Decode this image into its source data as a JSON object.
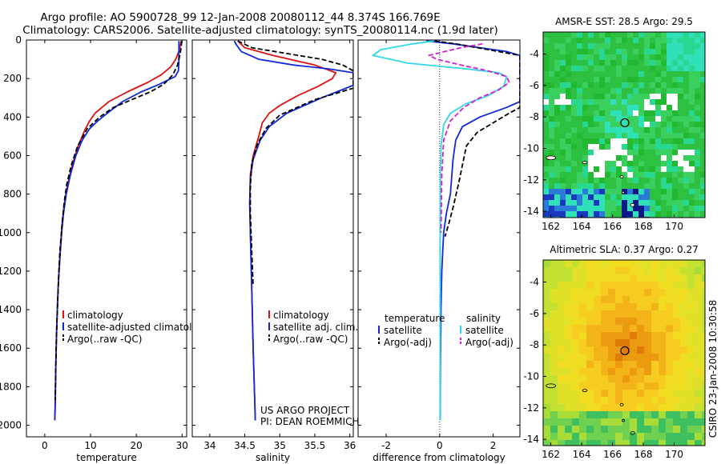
{
  "header": {
    "title_line1": "Argo profile: AO 5900728_99 12-Jan-2008 20080112_44 8.374S 166.769E",
    "title_line2": "Climatology: CARS2006. Satellite-adjusted climatology: synTS_20080114.nc (1.9d later)"
  },
  "side_label": "CSIRO 23-Jan-2008 10:30:58",
  "colors": {
    "climatology": "#e01010",
    "satellite": "#1028d8",
    "argo": "#000000",
    "satellite_salinity": "#30d8e8",
    "argo_salinity": "#d020d0"
  },
  "chart_data": [
    {
      "type": "line",
      "xlabel": "temperature",
      "ylabel": "",
      "xlim": [
        -4,
        31
      ],
      "ylim": [
        2060,
        0
      ],
      "xticks": [
        0,
        10,
        20,
        30
      ],
      "yticks": [
        0,
        200,
        400,
        600,
        800,
        1000,
        1200,
        1400,
        1600,
        1800,
        2000
      ],
      "legend": {
        "position": "lower-right",
        "entries": [
          "climatology",
          "satellite-adjusted climatolog",
          "Argo(..raw -QC)"
        ]
      },
      "series": [
        {
          "name": "climatology",
          "color": "climatology",
          "dash": false,
          "x": [
            29.8,
            29.6,
            29.3,
            28.6,
            27.5,
            25.5,
            22.5,
            18,
            14,
            11,
            9.8,
            8.7,
            7.3,
            6,
            5,
            4.3,
            3.8,
            3.5,
            3.1,
            2.8,
            2.6,
            2.45,
            2.35,
            2.3,
            2.2
          ],
          "y": [
            5,
            30,
            60,
            100,
            140,
            180,
            220,
            270,
            320,
            380,
            420,
            470,
            550,
            650,
            750,
            850,
            950,
            1050,
            1200,
            1350,
            1500,
            1650,
            1800,
            1900,
            1975
          ]
        },
        {
          "name": "satellite-adjusted climatolog",
          "color": "satellite",
          "dash": false,
          "x": [
            29.3,
            29.3,
            29.3,
            29.2,
            28.5,
            25,
            21,
            17,
            14.2,
            11.6,
            9.8,
            8.2,
            6.8,
            5.6,
            4.7,
            4.1,
            3.7,
            3.4,
            3,
            2.75,
            2.55,
            2.4,
            2.3,
            2.25,
            2.2
          ],
          "y": [
            5,
            60,
            120,
            160,
            190,
            230,
            270,
            320,
            370,
            420,
            460,
            520,
            600,
            700,
            800,
            900,
            1000,
            1100,
            1250,
            1400,
            1550,
            1700,
            1850,
            1920,
            1975
          ]
        },
        {
          "name": "Argo(..raw -QC)",
          "color": "argo",
          "dash": true,
          "x": [
            29.9,
            29.8,
            29.5,
            29,
            28,
            26,
            23,
            19,
            15,
            12,
            9.3,
            7.2,
            5.8,
            4.8,
            4.2,
            3.8,
            3.3,
            3,
            2.75,
            2.55,
            2.4,
            2.3
          ],
          "y": [
            5,
            40,
            80,
            130,
            180,
            230,
            270,
            310,
            350,
            400,
            460,
            550,
            650,
            750,
            850,
            950,
            1100,
            1250,
            1400,
            1550,
            1700,
            1870
          ]
        }
      ]
    },
    {
      "type": "line",
      "xlabel": "salinity",
      "ylabel": "",
      "xlim": [
        33.75,
        36.05
      ],
      "ylim": [
        2060,
        0
      ],
      "xticks": [
        34,
        34.5,
        35,
        35.5,
        36
      ],
      "yticks": [
        0,
        200,
        400,
        600,
        800,
        1000,
        1200,
        1400,
        1600,
        1800,
        2000
      ],
      "legend": {
        "position": "lower-right",
        "entries": [
          "climatology",
          "satellite adj. clim.",
          "Argo(..raw -QC)"
        ]
      },
      "annotation": [
        "US ARGO PROJECT",
        "PI: DEAN ROEMMICH"
      ],
      "series": [
        {
          "name": "climatology",
          "color": "climatology",
          "dash": false,
          "x": [
            34.4,
            34.5,
            34.9,
            35.5,
            35.8,
            35.75,
            35.55,
            35.25,
            35.0,
            34.85,
            34.75,
            34.7,
            34.62,
            34.58,
            34.57,
            34.58,
            34.6,
            34.62,
            34.65
          ],
          "y": [
            5,
            40,
            80,
            130,
            170,
            200,
            240,
            290,
            340,
            380,
            430,
            500,
            600,
            700,
            850,
            1000,
            1300,
            1600,
            1975
          ]
        },
        {
          "name": "satellite adj. clim.",
          "color": "satellite",
          "dash": false,
          "x": [
            34.35,
            34.38,
            34.45,
            34.7,
            35.2,
            35.7,
            36.05,
            36.05,
            35.6,
            35.1,
            34.85,
            34.72,
            34.62,
            34.58,
            34.57,
            34.58,
            34.6,
            34.62,
            34.65
          ],
          "y": [
            5,
            25,
            60,
            100,
            130,
            150,
            170,
            235,
            300,
            380,
            450,
            520,
            620,
            720,
            850,
            1000,
            1300,
            1600,
            1975
          ]
        },
        {
          "name": "Argo(..raw -QC)",
          "color": "argo",
          "dash": true,
          "x": [
            34.4,
            34.6,
            35.1,
            35.6,
            35.9,
            36.05,
            36.05,
            35.5,
            35.0,
            34.8,
            34.68,
            34.6,
            34.58,
            34.58,
            34.6,
            34.62
          ],
          "y": [
            5,
            40,
            70,
            100,
            130,
            160,
            250,
            310,
            390,
            460,
            540,
            640,
            760,
            900,
            1100,
            1280
          ]
        }
      ]
    },
    {
      "type": "line",
      "xlabel": "difference from climatology",
      "ylabel": "",
      "xlim": [
        -3.05,
        3
      ],
      "ylim": [
        2060,
        0
      ],
      "xticks": [
        -2,
        0,
        2
      ],
      "yticks": [
        0,
        200,
        400,
        600,
        800,
        1000,
        1200,
        1400,
        1600,
        1800,
        2000
      ],
      "zero_line": true,
      "legend": {
        "position": "lower-center",
        "columns": [
          [
            "temperature",
            "satellite",
            "Argo(-adj)"
          ],
          [
            "salinity",
            "satellite",
            "Argo(-adj)"
          ]
        ]
      },
      "series": [
        {
          "name": "satellite",
          "group": "temperature",
          "color": "satellite",
          "dash": false,
          "x": [
            -0.5,
            0.5,
            1.5,
            2.5,
            3.0,
            3.0,
            2.5,
            1.5,
            0.85,
            0.6,
            0.5,
            0.4,
            0.25,
            0.15,
            0.08,
            0.05,
            0.03,
            0.02
          ],
          "y": [
            5,
            20,
            40,
            60,
            80,
            320,
            350,
            400,
            450,
            520,
            620,
            800,
            900,
            1000,
            1200,
            1400,
            1700,
            1975
          ]
        },
        {
          "name": "Argo(-adj)",
          "group": "temperature",
          "color": "argo",
          "dash": true,
          "x": [
            -0.2,
            0.6,
            1.8,
            3.0,
            3.0,
            2.6,
            2.0,
            1.4,
            1.0,
            0.85,
            0.7,
            0.5,
            0.35,
            0.2
          ],
          "y": [
            5,
            20,
            50,
            80,
            350,
            380,
            430,
            480,
            550,
            650,
            750,
            870,
            950,
            1020
          ]
        },
        {
          "name": "satellite",
          "group": "salinity",
          "color": "satellite_salinity",
          "dash": false,
          "x": [
            -0.2,
            -1.0,
            -2.2,
            -2.5,
            -1.2,
            1.0,
            2.2,
            2.5,
            2.4,
            1.8,
            1.0,
            0.4,
            0.15,
            0.05,
            0.03,
            0.02,
            0.02,
            0.02
          ],
          "y": [
            5,
            20,
            50,
            80,
            120,
            150,
            170,
            190,
            240,
            290,
            330,
            380,
            440,
            550,
            700,
            1000,
            1500,
            1975
          ]
        },
        {
          "name": "Argo(-adj)",
          "group": "salinity",
          "color": "argo_salinity",
          "dash": true,
          "x": [
            1.6,
            0.8,
            0.2,
            -0.4,
            -0.1,
            0.8,
            1.8,
            2.5,
            2.6,
            2.2,
            1.5,
            0.9,
            0.4,
            0.15,
            0.08,
            0.05
          ],
          "y": [
            20,
            40,
            60,
            80,
            100,
            130,
            160,
            190,
            220,
            260,
            300,
            350,
            420,
            520,
            700,
            1000
          ]
        }
      ]
    },
    {
      "type": "heatmap",
      "title": "AMSR-E SST: 28.5 Argo: 29.5",
      "xlim": [
        161.5,
        172
      ],
      "ylim": [
        -14.4,
        -2.6
      ],
      "xticks": [
        162,
        164,
        166,
        168,
        170
      ],
      "yticks": [
        -4,
        -6,
        -8,
        -10,
        -12,
        -14
      ],
      "argo_marker": {
        "x": 166.8,
        "y": -8.37
      },
      "palette": [
        "#2ec040",
        "#3ad060",
        "#28d890",
        "#30e0b8",
        "#22b830",
        "#18a828",
        "#2a7ad8",
        "#1838c0",
        "#0a1a8a",
        "#ffffff"
      ]
    },
    {
      "type": "heatmap",
      "title": "Altimetric SLA: 0.37 Argo: 0.27",
      "xlim": [
        161.5,
        172
      ],
      "ylim": [
        -14.4,
        -2.6
      ],
      "xticks": [
        162,
        164,
        166,
        168,
        170
      ],
      "yticks": [
        -4,
        -6,
        -8,
        -10,
        -12,
        -14
      ],
      "argo_marker": {
        "x": 166.8,
        "y": -8.37
      },
      "palette": [
        "#e07a0a",
        "#ec9a10",
        "#f2b418",
        "#f6cc20",
        "#f0dc20",
        "#e0e028",
        "#c4e030",
        "#a8dc38",
        "#70d050",
        "#3ec060"
      ]
    }
  ]
}
